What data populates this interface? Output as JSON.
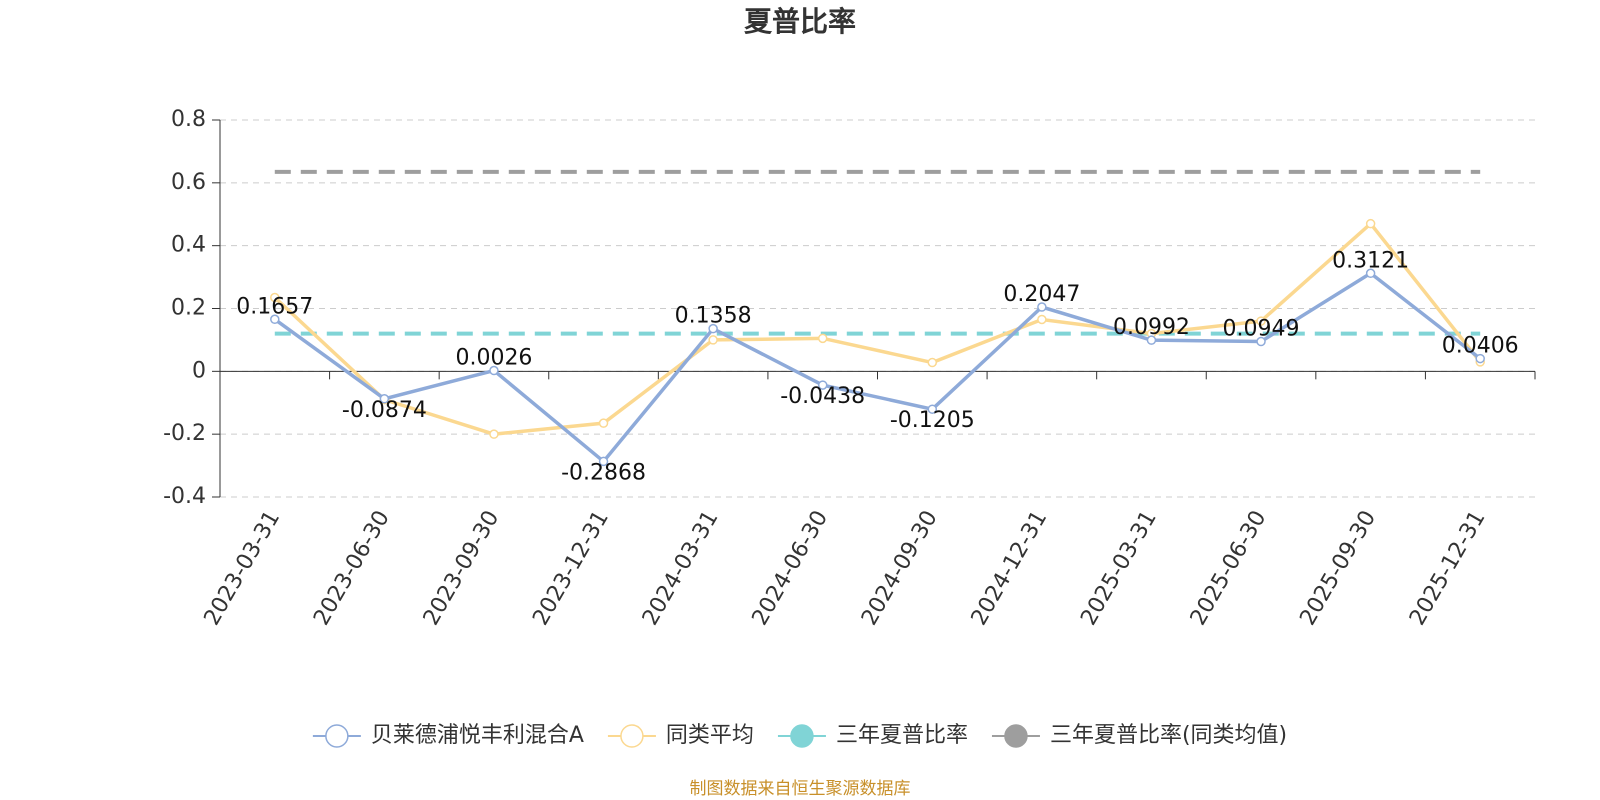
{
  "chart_data": {
    "type": "line",
    "title": "夏普比率",
    "source": "制图数据来自恒生聚源数据库",
    "categories": [
      "2023-03-31",
      "2023-06-30",
      "2023-09-30",
      "2023-12-31",
      "2024-03-31",
      "2024-06-30",
      "2024-09-30",
      "2024-12-31",
      "2025-03-31",
      "2025-06-30",
      "2025-09-30",
      "2025-12-31"
    ],
    "series": [
      {
        "name": "贝莱德浦悦丰利混合A",
        "color": "#8eaad9",
        "values": [
          0.1657,
          -0.0874,
          0.0026,
          -0.2868,
          0.1358,
          -0.0438,
          -0.1205,
          0.2047,
          0.0992,
          0.0949,
          0.3121,
          0.0406
        ],
        "labels": true
      },
      {
        "name": "同类平均",
        "color": "#fbd890",
        "values": [
          0.235,
          -0.09,
          -0.2,
          -0.165,
          0.1,
          0.105,
          0.028,
          0.165,
          0.12,
          0.16,
          0.47,
          0.03
        ]
      },
      {
        "name": "三年夏普比率",
        "color": "#80d4d6",
        "type": "hline",
        "value": 0.12
      },
      {
        "name": "三年夏普比率(同类均值)",
        "color": "#9e9e9e",
        "type": "hline",
        "value": 0.635
      }
    ],
    "ylim": [
      -0.4,
      0.8
    ],
    "yticks": [
      -0.4,
      -0.2,
      0,
      0.2,
      0.4,
      0.6,
      0.8
    ],
    "grid": true
  }
}
